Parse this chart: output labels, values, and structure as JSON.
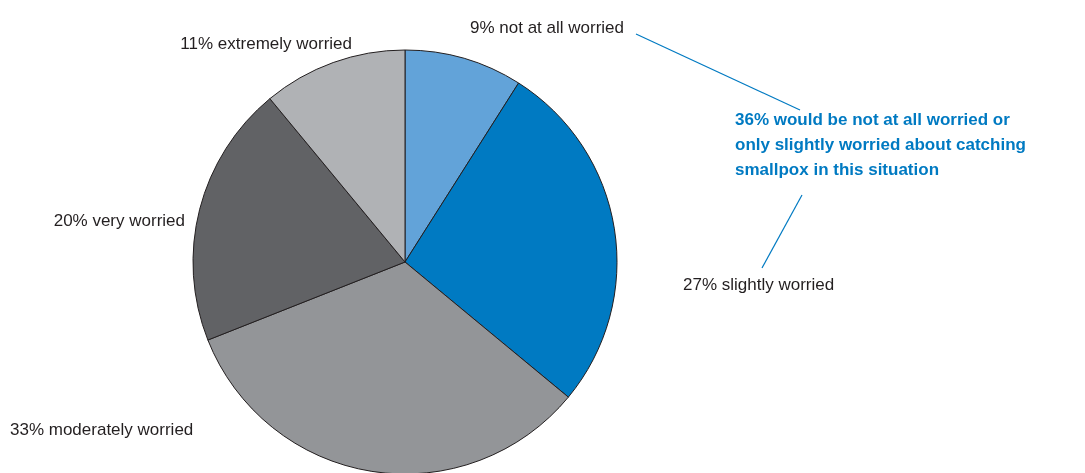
{
  "chart_data": {
    "type": "pie",
    "categories": [
      "not at all worried",
      "slightly worried",
      "moderately worried",
      "very worried",
      "extremely worried"
    ],
    "values": [
      9,
      27,
      33,
      20,
      11
    ],
    "value_labels": [
      "9%",
      "27%",
      "33%",
      "20%",
      "11%"
    ],
    "colors": [
      "#62a3d9",
      "#007ac2",
      "#939598",
      "#616265",
      "#b0b2b5"
    ],
    "annotations": [
      "36% would be not at all worried or only slightly worried about catching smallpox in this situation"
    ]
  }
}
